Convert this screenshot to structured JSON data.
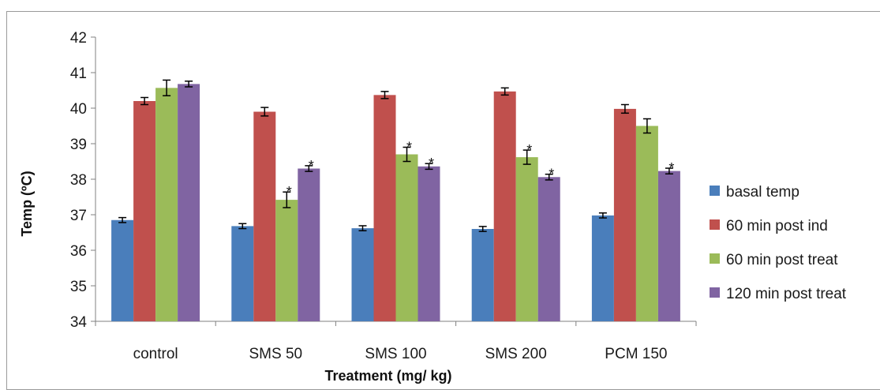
{
  "chart_data": {
    "type": "bar",
    "title": "",
    "xlabel": "Treatment (mg/ kg)",
    "ylabel": "Temp (ºC)",
    "ylim": [
      34,
      42
    ],
    "yticks": [
      34,
      35,
      36,
      37,
      38,
      39,
      40,
      41,
      42
    ],
    "categories": [
      "control",
      "SMS 50",
      "SMS 100",
      "SMS 200",
      "PCM 150"
    ],
    "grid": false,
    "legend_position": "right",
    "series": [
      {
        "name": "basal temp",
        "color": "#4a7ebb",
        "values": [
          36.85,
          36.68,
          36.62,
          36.6,
          36.98
        ],
        "errors": [
          0.07,
          0.07,
          0.07,
          0.07,
          0.07
        ],
        "marks": [
          "",
          "",
          "",
          "",
          ""
        ]
      },
      {
        "name": "60 min post ind",
        "color": "#c0504d",
        "values": [
          40.2,
          39.9,
          40.37,
          40.47,
          39.98
        ],
        "errors": [
          0.1,
          0.12,
          0.1,
          0.1,
          0.12
        ],
        "marks": [
          "",
          "",
          "",
          "",
          ""
        ]
      },
      {
        "name": "60 min post treat",
        "color": "#9bbb59",
        "values": [
          40.57,
          37.42,
          38.7,
          38.62,
          39.5
        ],
        "errors": [
          0.22,
          0.22,
          0.2,
          0.2,
          0.2
        ],
        "marks": [
          "",
          "*",
          "*",
          "*",
          ""
        ]
      },
      {
        "name": "120 min post treat",
        "color": "#8064a2",
        "values": [
          40.68,
          38.3,
          38.36,
          38.06,
          38.23
        ],
        "errors": [
          0.08,
          0.08,
          0.08,
          0.08,
          0.08
        ],
        "marks": [
          "",
          "*",
          "*",
          "*",
          "*"
        ]
      }
    ]
  }
}
